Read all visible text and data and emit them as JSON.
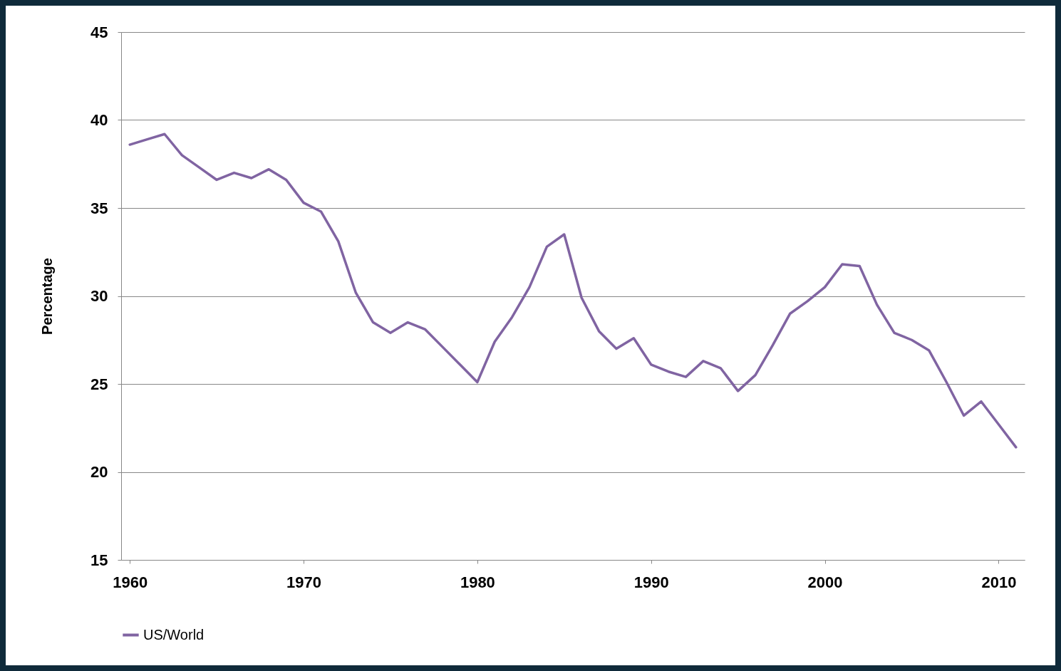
{
  "chart_data": {
    "type": "line",
    "ylabel": "Percentage",
    "x": [
      1960,
      1961,
      1962,
      1963,
      1964,
      1965,
      1966,
      1967,
      1968,
      1969,
      1970,
      1971,
      1972,
      1973,
      1974,
      1975,
      1976,
      1977,
      1978,
      1979,
      1980,
      1981,
      1982,
      1983,
      1984,
      1985,
      1986,
      1987,
      1988,
      1989,
      1990,
      1991,
      1992,
      1993,
      1994,
      1995,
      1996,
      1997,
      1998,
      1999,
      2000,
      2001,
      2002,
      2003,
      2004,
      2005,
      2006,
      2007,
      2008,
      2009,
      2010,
      2011
    ],
    "series": [
      {
        "name": "US/World",
        "color": "#8064a2",
        "values": [
          38.6,
          38.9,
          39.2,
          38.0,
          37.3,
          36.6,
          37.0,
          36.7,
          37.2,
          36.6,
          35.3,
          34.8,
          33.1,
          30.2,
          28.5,
          27.9,
          28.5,
          28.1,
          27.1,
          26.1,
          25.1,
          27.4,
          28.8,
          30.5,
          32.8,
          33.5,
          29.9,
          28.0,
          27.0,
          27.6,
          26.1,
          25.7,
          25.4,
          26.3,
          25.9,
          24.6,
          25.5,
          27.2,
          29.0,
          29.7,
          30.5,
          31.8,
          31.7,
          29.5,
          27.9,
          27.5,
          26.9,
          25.1,
          23.2,
          24.0,
          22.7,
          21.4
        ]
      }
    ],
    "xlim": [
      1959.5,
      2011.5
    ],
    "xticks": [
      1960,
      1970,
      1980,
      1990,
      2000,
      2010
    ],
    "ylim": [
      15,
      45
    ],
    "yticks": [
      15,
      20,
      25,
      30,
      35,
      40,
      45
    ],
    "grid": "y",
    "legend": "bottom"
  }
}
